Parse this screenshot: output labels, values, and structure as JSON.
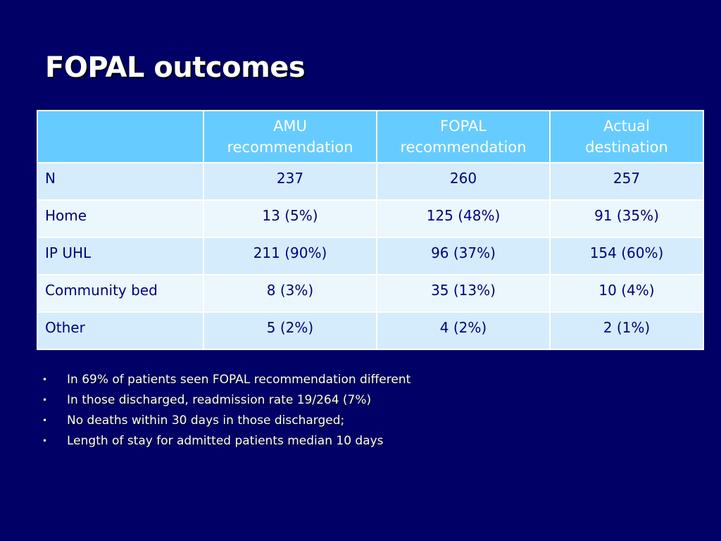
{
  "slide": {
    "title": "FOPAL outcomes"
  },
  "table": {
    "headers": [
      "",
      "AMU recommendation",
      "FOPAL recommendation",
      "Actual destination"
    ],
    "header_lines": [
      [
        "",
        ""
      ],
      [
        "AMU",
        "recommendation"
      ],
      [
        "FOPAL",
        "recommendation"
      ],
      [
        "Actual",
        "destination"
      ]
    ],
    "rows": [
      {
        "label": "N",
        "amu": "237",
        "fopal": "260",
        "actual": "257"
      },
      {
        "label": "Home",
        "amu": "13 (5%)",
        "fopal": "125 (48%)",
        "actual": "91 (35%)"
      },
      {
        "label": "IP UHL",
        "amu": "211 (90%)",
        "fopal": "96 (37%)",
        "actual": "154 (60%)"
      },
      {
        "label": "Community bed",
        "amu": "8 (3%)",
        "fopal": "35 (13%)",
        "actual": "10 (4%)"
      },
      {
        "label": "Other",
        "amu": "5 (2%)",
        "fopal": "4 (2%)",
        "actual": "2 (1%)"
      }
    ]
  },
  "bullets": {
    "marker": "•",
    "items": [
      "In 69% of patients seen FOPAL recommendation different",
      "In those discharged, readmission rate 19/264 (7%)",
      "No deaths within 30 days in those discharged;",
      "Length of stay for admitted patients median 10 days"
    ]
  },
  "colors": {
    "background": "#000066",
    "header_fill": "#66ccff",
    "row_fill_odd": "#d4ecfb",
    "row_fill_even": "#ebf6fd",
    "table_text": "#00007a",
    "title_text": "#ffffff"
  }
}
